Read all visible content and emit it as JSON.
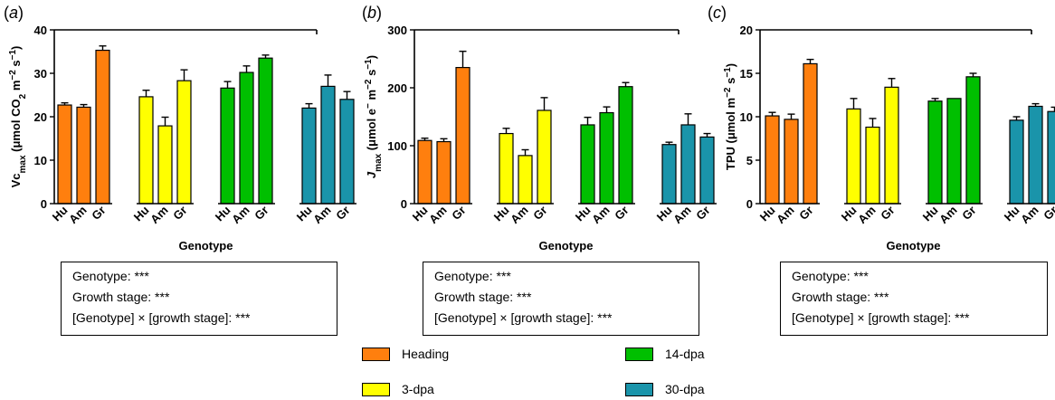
{
  "colors": {
    "Heading": "#ff7f0e",
    "3-dpa": "#ffff00",
    "14-dpa": "#00bf00",
    "30-dpa": "#1a94aa"
  },
  "chart_data": [
    {
      "type": "bar",
      "panel_label": "(a)",
      "ylabel": "Vcmax (μmol CO2 m−2 s−1)",
      "xlabel": "Genotype",
      "ylim": [
        0,
        40
      ],
      "yticks": [
        "0",
        "10",
        "20",
        "30",
        "40"
      ],
      "categories": [
        "Hu",
        "Am",
        "Gr"
      ],
      "series": [
        {
          "name": "Heading",
          "values": [
            22.7,
            22.2,
            35.3
          ],
          "errors": [
            0.5,
            0.6,
            1.0
          ]
        },
        {
          "name": "3-dpa",
          "values": [
            24.6,
            17.9,
            28.3
          ],
          "errors": [
            1.5,
            2.0,
            2.5
          ]
        },
        {
          "name": "14-dpa",
          "values": [
            26.6,
            30.2,
            33.5
          ],
          "errors": [
            1.5,
            1.5,
            0.7
          ]
        },
        {
          "name": "30-dpa",
          "values": [
            22.0,
            27.0,
            24.0
          ],
          "errors": [
            1.0,
            2.6,
            1.8
          ]
        }
      ]
    },
    {
      "type": "bar",
      "panel_label": "(b)",
      "ylabel": "Jmax (μmol e− m−2 s−1)",
      "xlabel": "Genotype",
      "ylim": [
        0,
        300
      ],
      "yticks": [
        "0",
        "100",
        "200",
        "300"
      ],
      "categories": [
        "Hu",
        "Am",
        "Gr"
      ],
      "series": [
        {
          "name": "Heading",
          "values": [
            109,
            107,
            235
          ],
          "errors": [
            4,
            5,
            28
          ]
        },
        {
          "name": "3-dpa",
          "values": [
            121,
            83,
            161
          ],
          "errors": [
            9,
            10,
            22
          ]
        },
        {
          "name": "14-dpa",
          "values": [
            136,
            157,
            202
          ],
          "errors": [
            13,
            10,
            7
          ]
        },
        {
          "name": "30-dpa",
          "values": [
            102,
            136,
            115
          ],
          "errors": [
            4,
            19,
            6
          ]
        }
      ]
    },
    {
      "type": "bar",
      "panel_label": "(c)",
      "ylabel": "TPU (μmol m−2 s−1)",
      "xlabel": "Genotype",
      "ylim": [
        0,
        20
      ],
      "yticks": [
        "0",
        "5",
        "10",
        "15",
        "20"
      ],
      "categories": [
        "Hu",
        "Am",
        "Gr"
      ],
      "series": [
        {
          "name": "Heading",
          "values": [
            10.1,
            9.7,
            16.1
          ],
          "errors": [
            0.4,
            0.6,
            0.5
          ]
        },
        {
          "name": "3-dpa",
          "values": [
            10.9,
            8.8,
            13.4
          ],
          "errors": [
            1.2,
            1.0,
            1.0
          ]
        },
        {
          "name": "14-dpa",
          "values": [
            11.8,
            12.1,
            14.6
          ],
          "errors": [
            0.3,
            0.0,
            0.4
          ]
        },
        {
          "name": "30-dpa",
          "values": [
            9.6,
            11.2,
            10.6
          ],
          "errors": [
            0.4,
            0.3,
            0.5
          ]
        }
      ]
    }
  ],
  "stat_boxes": [
    {
      "lines": [
        "Genotype: ***",
        "Growth stage: ***",
        "[Genotype] × [growth stage]: ***"
      ]
    },
    {
      "lines": [
        "Genotype: ***",
        "Growth stage: ***",
        "[Genotype] × [growth stage]: ***"
      ]
    },
    {
      "lines": [
        "Genotype: ***",
        "Growth stage: ***",
        "[Genotype] × [growth stage]: ***"
      ]
    }
  ],
  "legend": [
    "Heading",
    "3-dpa",
    "14-dpa",
    "30-dpa"
  ]
}
